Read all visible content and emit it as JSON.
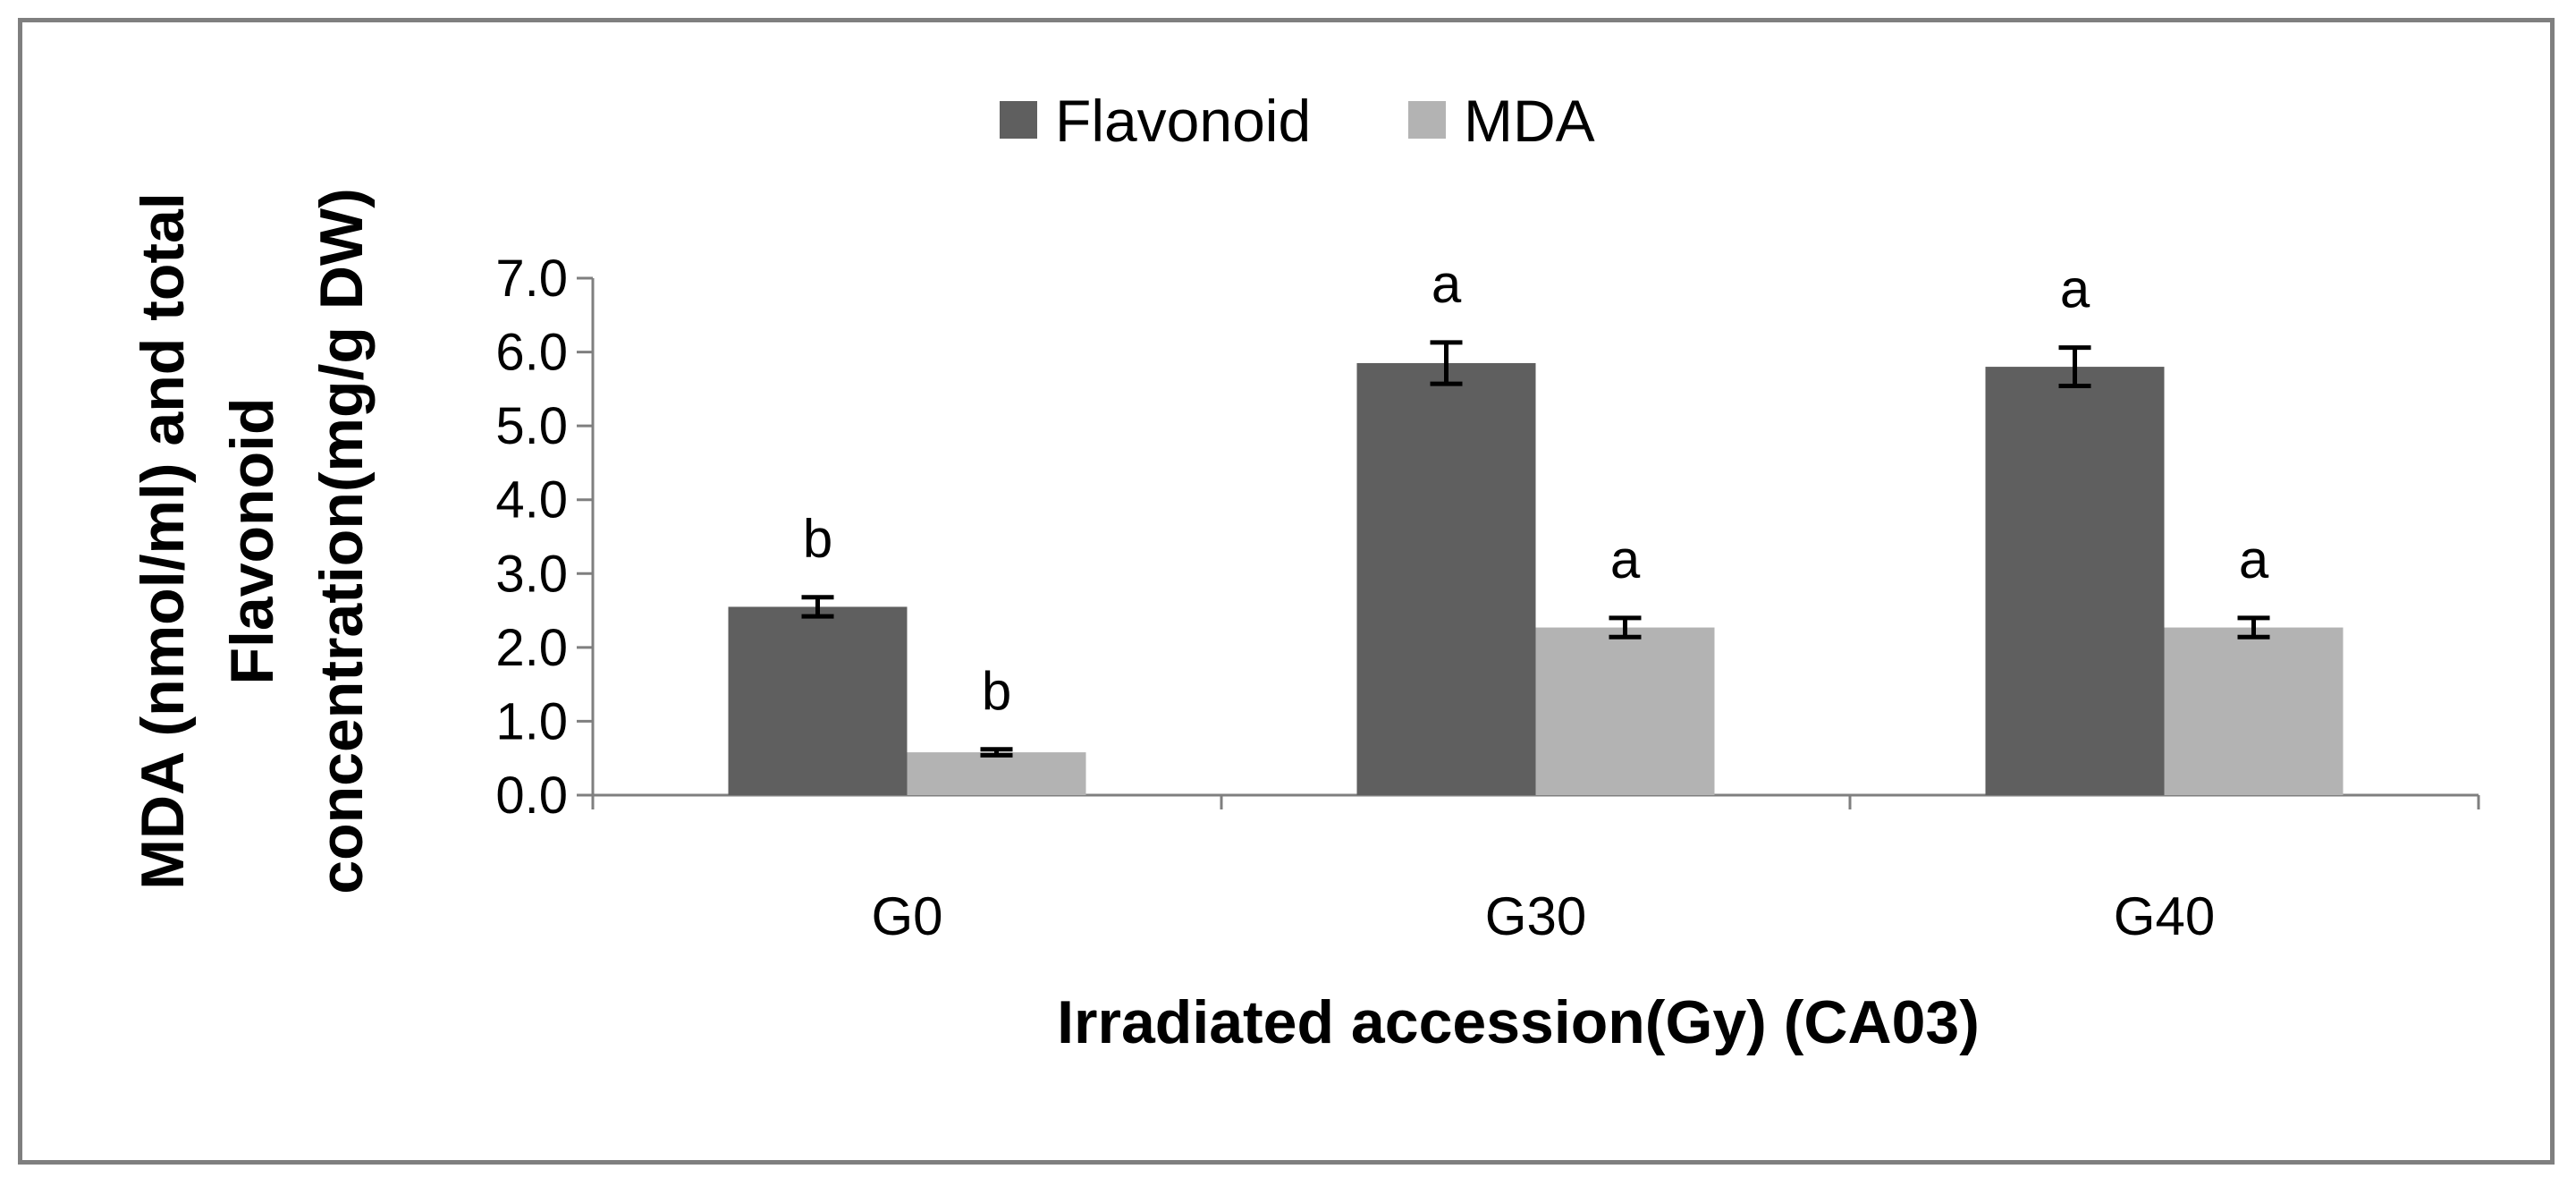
{
  "chart_data": {
    "type": "bar",
    "title": "",
    "xlabel": "Irradiated accession(Gy) (CA03)",
    "ylabel_lines": [
      "MDA (nmol/ml) and total",
      "Flavonoid",
      "concentration(mg/g DW)"
    ],
    "categories": [
      "G0",
      "G30",
      "G40"
    ],
    "ylim": [
      0,
      7
    ],
    "yticks": [
      "0.0",
      "1.0",
      "2.0",
      "3.0",
      "4.0",
      "5.0",
      "6.0",
      "7.0"
    ],
    "legend_position": "top-center",
    "grid": false,
    "series": [
      {
        "name": "Flavonoid",
        "color": "#5f5f5f",
        "values": [
          2.55,
          5.85,
          5.8
        ],
        "errors": [
          0.13,
          0.28,
          0.26
        ],
        "significance": [
          "b",
          "a",
          "a"
        ]
      },
      {
        "name": "MDA",
        "color": "#b3b3b3",
        "values": [
          0.58,
          2.27,
          2.27
        ],
        "errors": [
          0.04,
          0.13,
          0.13
        ],
        "significance": [
          "b",
          "a",
          "a"
        ]
      }
    ]
  }
}
